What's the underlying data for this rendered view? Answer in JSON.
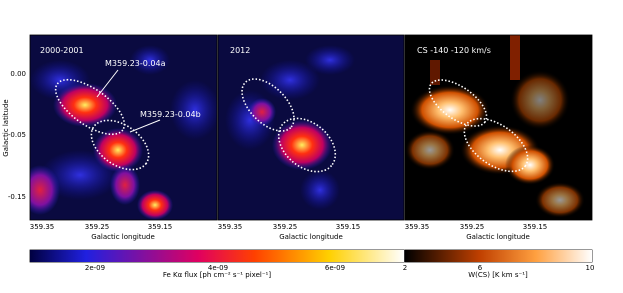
{
  "panels": [
    {
      "label": "2000-2001",
      "annotations": [
        "M359.23-0.04a",
        "M359.23-0.04b"
      ],
      "xticks": [
        "359.35",
        "359.25",
        "359.15"
      ],
      "xlabel": "Galactic longitude"
    },
    {
      "label": "2012",
      "xticks": [
        "359.35",
        "359.25",
        "359.15"
      ],
      "xlabel": "Galactic longitude"
    },
    {
      "label": "CS -140 -120 km/s",
      "xticks": [
        "359.35",
        "359.25",
        "359.15"
      ],
      "xlabel": "Galactic longitude"
    }
  ],
  "ylabel": "Galactic latitude",
  "yticks": [
    "0.00",
    "-0.05",
    "-0.15"
  ],
  "colorbars": [
    {
      "label": "Fe Kα flux [ph cm⁻² s⁻¹ pixel⁻¹]",
      "ticks": [
        "2e-09",
        "4e-09",
        "6e-09"
      ]
    },
    {
      "label": "W(CS) [K km s⁻¹]",
      "ticks": [
        "2",
        "6",
        "10"
      ]
    }
  ]
}
